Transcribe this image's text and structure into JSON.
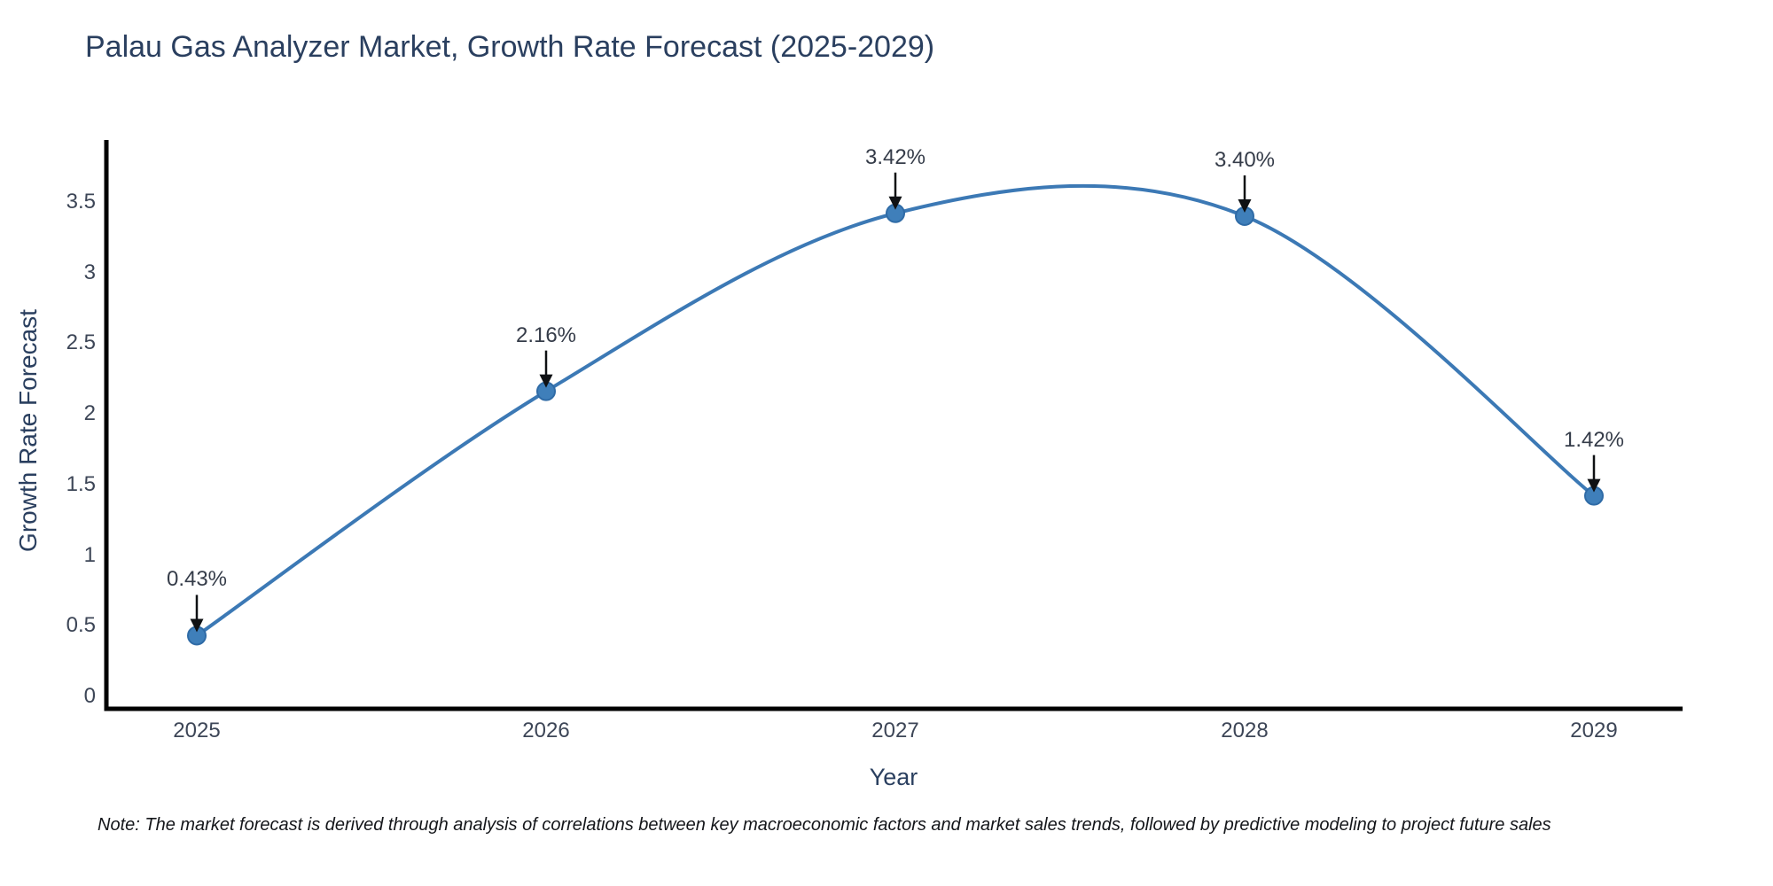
{
  "title": "Palau Gas Analyzer Market, Growth Rate Forecast (2025-2029)",
  "note": "Note: The market forecast is derived through analysis of correlations between key macroeconomic factors and market sales trends, followed by predictive modeling to project future sales",
  "chart_data": {
    "type": "line",
    "title": "Palau Gas Analyzer Market, Growth Rate Forecast (2025-2029)",
    "x": [
      2025,
      2026,
      2027,
      2028,
      2029
    ],
    "categories": [
      "2025",
      "2026",
      "2027",
      "2028",
      "2029"
    ],
    "series": [
      {
        "name": "Growth Rate Forecast",
        "values": [
          0.43,
          2.16,
          3.42,
          3.4,
          1.42
        ]
      }
    ],
    "point_labels": [
      "0.43%",
      "2.16%",
      "3.42%",
      "3.40%",
      "1.42%"
    ],
    "xlabel": "Year",
    "ylabel": "Growth Rate Forecast",
    "ylim": [
      0,
      4
    ],
    "yticks": [
      "0",
      "0.5",
      "1",
      "1.5",
      "2",
      "2.5",
      "3",
      "3.5"
    ],
    "grid": false,
    "legend": "none",
    "curve": "spline",
    "line_color": "#3c79b5",
    "marker_color": "#3f7fba",
    "marker_edge_color": "#2f6ba6",
    "axis_line_color": "#000000",
    "annotation_arrow_color": "#0f1114"
  }
}
